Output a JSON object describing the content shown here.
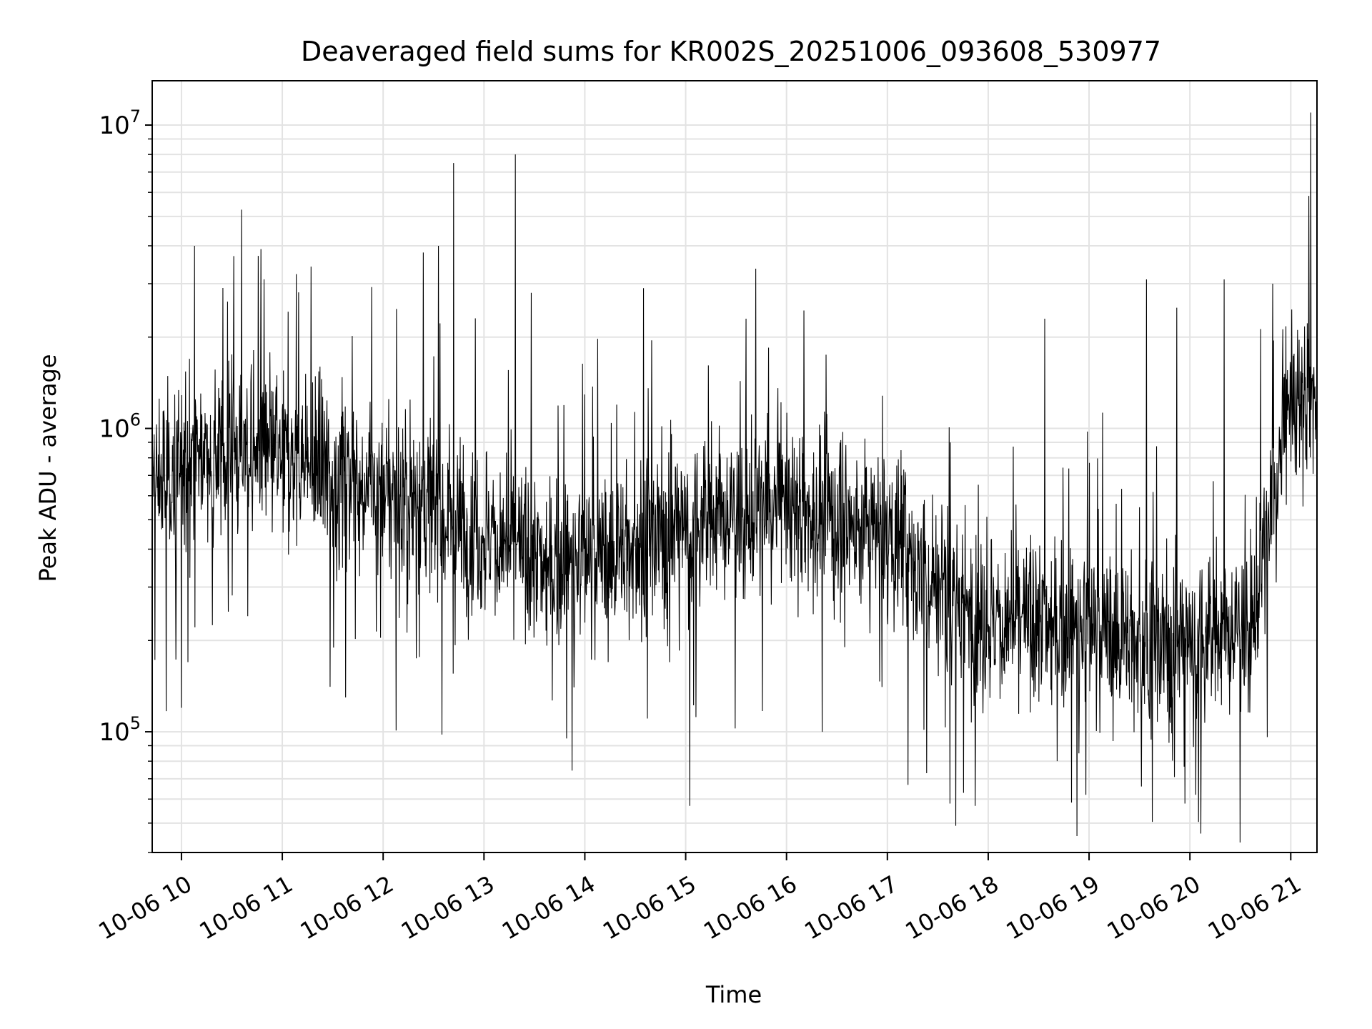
{
  "chart_data": {
    "type": "line",
    "title": "Deaveraged field sums for KR002S_20251006_093608_530977",
    "xlabel": "Time",
    "ylabel": "Peak ADU - average",
    "yscale": "log",
    "ylim": [
      40000,
      14000000
    ],
    "xlim_hours": [
      9.71,
      21.26
    ],
    "x_ticks": [
      {
        "hour": 10,
        "label": "10-06 10"
      },
      {
        "hour": 11,
        "label": "10-06 11"
      },
      {
        "hour": 12,
        "label": "10-06 12"
      },
      {
        "hour": 13,
        "label": "10-06 13"
      },
      {
        "hour": 14,
        "label": "10-06 14"
      },
      {
        "hour": 15,
        "label": "10-06 15"
      },
      {
        "hour": 16,
        "label": "10-06 16"
      },
      {
        "hour": 17,
        "label": "10-06 17"
      },
      {
        "hour": 18,
        "label": "10-06 18"
      },
      {
        "hour": 19,
        "label": "10-06 19"
      },
      {
        "hour": 20,
        "label": "10-06 20"
      },
      {
        "hour": 21,
        "label": "10-06 21"
      }
    ],
    "y_ticks": [
      {
        "value": 100000,
        "base": "10",
        "exp": "5"
      },
      {
        "value": 1000000,
        "base": "10",
        "exp": "6"
      },
      {
        "value": 10000000,
        "base": "10",
        "exp": "7"
      }
    ],
    "grid": true,
    "line_color": "#000000",
    "series": [
      {
        "name": "deaveraged field sum",
        "x_start_hour": 9.71,
        "x_end_hour": 21.26,
        "sample_count": 3000,
        "baseline": [
          {
            "hour": 9.71,
            "value": 650000
          },
          {
            "hour": 10.3,
            "value": 850000
          },
          {
            "hour": 11.0,
            "value": 800000
          },
          {
            "hour": 11.8,
            "value": 650000
          },
          {
            "hour": 12.5,
            "value": 550000
          },
          {
            "hour": 13.0,
            "value": 450000
          },
          {
            "hour": 13.6,
            "value": 350000
          },
          {
            "hour": 14.2,
            "value": 380000
          },
          {
            "hour": 15.0,
            "value": 480000
          },
          {
            "hour": 16.0,
            "value": 550000
          },
          {
            "hour": 17.0,
            "value": 450000
          },
          {
            "hour": 17.6,
            "value": 280000
          },
          {
            "hour": 18.0,
            "value": 230000
          },
          {
            "hour": 19.0,
            "value": 220000
          },
          {
            "hour": 19.8,
            "value": 190000
          },
          {
            "hour": 20.6,
            "value": 220000
          },
          {
            "hour": 20.8,
            "value": 500000
          },
          {
            "hour": 21.0,
            "value": 1200000
          },
          {
            "hour": 21.26,
            "value": 1300000
          }
        ],
        "spikes": [
          {
            "hour": 10.13,
            "value": 4000000
          },
          {
            "hour": 10.52,
            "value": 3700000
          },
          {
            "hour": 10.79,
            "value": 3900000
          },
          {
            "hour": 12.4,
            "value": 3800000
          },
          {
            "hour": 12.55,
            "value": 4000000
          },
          {
            "hour": 12.7,
            "value": 7500000
          },
          {
            "hour": 13.31,
            "value": 8000000
          },
          {
            "hour": 13.47,
            "value": 2800000
          },
          {
            "hour": 14.58,
            "value": 2900000
          },
          {
            "hour": 15.6,
            "value": 2300000
          },
          {
            "hour": 18.56,
            "value": 2300000
          },
          {
            "hour": 19.57,
            "value": 3100000
          },
          {
            "hour": 19.87,
            "value": 2500000
          },
          {
            "hour": 20.34,
            "value": 3100000
          },
          {
            "hour": 20.82,
            "value": 3000000
          },
          {
            "hour": 21.2,
            "value": 11000000
          }
        ],
        "dips": [
          {
            "hour": 9.85,
            "value": 117000
          },
          {
            "hour": 10.0,
            "value": 120000
          },
          {
            "hour": 12.13,
            "value": 101000
          },
          {
            "hour": 15.04,
            "value": 57000
          },
          {
            "hour": 17.62,
            "value": 58000
          },
          {
            "hour": 17.68,
            "value": 49000
          },
          {
            "hour": 17.87,
            "value": 57000
          },
          {
            "hour": 18.97,
            "value": 62000
          },
          {
            "hour": 19.52,
            "value": 66000
          },
          {
            "hour": 19.95,
            "value": 58000
          },
          {
            "hour": 20.06,
            "value": 62000
          }
        ]
      }
    ]
  }
}
